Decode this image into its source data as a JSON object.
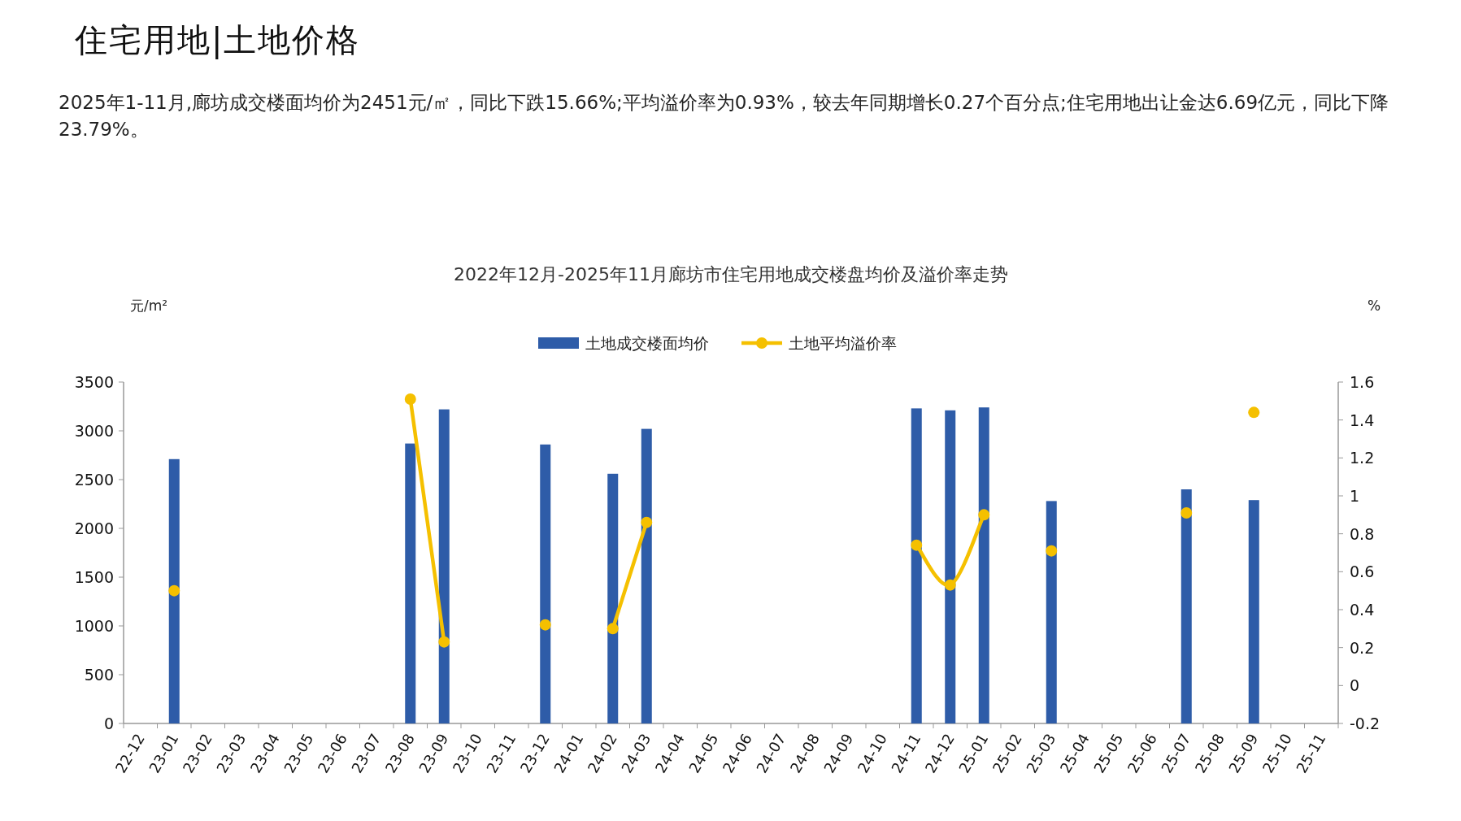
{
  "chart_data": {
    "type": "bar",
    "title": "住宅用地|土地价格",
    "subtitle": "2025年1-11月,廊坊成交楼面均价为2451元/㎡，同比下跌15.66%;平均溢价率为0.93%，较去年同期增长0.27个百分点;住宅用地出让金达6.69亿元，同比下降23.79%。",
    "annotations": [
      "2022年12月-2025年11月廊坊市住宅用地成交楼盘均价及溢价率走势"
    ],
    "ylabel": "元/m²",
    "y2label": "%",
    "categories": [
      "22-12",
      "23-01",
      "23-02",
      "23-03",
      "23-04",
      "23-05",
      "23-06",
      "23-07",
      "23-08",
      "23-09",
      "23-10",
      "23-11",
      "23-12",
      "24-01",
      "24-02",
      "24-03",
      "24-04",
      "24-05",
      "24-06",
      "24-07",
      "24-08",
      "24-09",
      "24-10",
      "24-11",
      "24-12",
      "25-01",
      "25-02",
      "25-03",
      "25-04",
      "25-05",
      "25-06",
      "25-07",
      "25-08",
      "25-09",
      "25-10",
      "25-11"
    ],
    "series": [
      {
        "name": "土地成交楼面均价",
        "color": "#2e5ca8",
        "values": [
          null,
          2710,
          null,
          null,
          null,
          null,
          null,
          null,
          2870,
          3220,
          null,
          null,
          2860,
          null,
          2560,
          3020,
          null,
          null,
          null,
          null,
          null,
          null,
          null,
          3230,
          3210,
          3240,
          null,
          2280,
          null,
          null,
          null,
          2400,
          null,
          2290,
          null,
          null
        ]
      },
      {
        "name": "土地平均溢价率",
        "type": "line",
        "axis": "y2",
        "color": "#f5c000",
        "marker": "circle",
        "values": [
          null,
          0.5,
          null,
          null,
          null,
          null,
          null,
          null,
          1.51,
          0.23,
          null,
          null,
          0.32,
          null,
          0.3,
          0.86,
          null,
          null,
          null,
          null,
          null,
          null,
          null,
          0.74,
          0.53,
          0.9,
          null,
          0.71,
          null,
          null,
          null,
          0.91,
          null,
          1.44,
          null,
          null
        ]
      }
    ],
    "ylim": [
      0,
      3500
    ],
    "yticks": [
      0,
      500,
      1000,
      1500,
      2000,
      2500,
      3000,
      3500
    ],
    "y2lim": [
      -0.2,
      1.6
    ],
    "y2ticks": [
      -0.2,
      0,
      0.2,
      0.4,
      0.6,
      0.8,
      1,
      1.2,
      1.4,
      1.6
    ],
    "legend": "top"
  }
}
